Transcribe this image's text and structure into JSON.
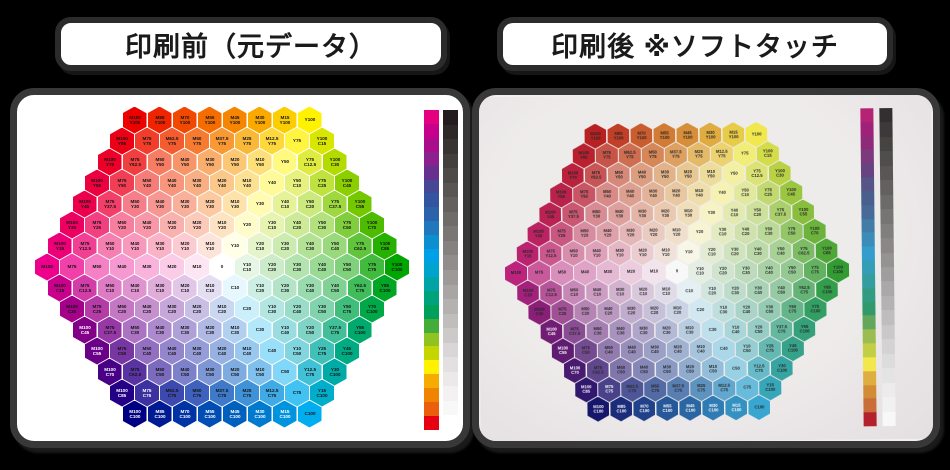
{
  "page": {
    "background": "#000000"
  },
  "panels": {
    "left": {
      "title": "印刷前（元データ）"
    },
    "right": {
      "title": "印刷後 ※ソフトタッチ"
    }
  },
  "inks": {
    "M": "#ec008c",
    "Y": "#fff200",
    "C": "#00aeef"
  },
  "center_label": "0",
  "hex_rows": [
    [
      "M100 Y100",
      "M85 Y100",
      "M70 Y100",
      "M55 Y100",
      "M45 Y100",
      "M30 Y100",
      "M15 Y100",
      "Y100"
    ],
    [
      "M100 Y85",
      "M75 Y75",
      "M62.5 Y75",
      "M50 Y75",
      "M37.5 Y75",
      "M25 Y75",
      "M12.5 Y75",
      "Y75",
      "Y100 C15"
    ],
    [
      "M100 Y70",
      "M75 Y62.5",
      "M50 Y50",
      "M40 Y50",
      "M30 Y50",
      "M20 Y50",
      "M10 Y50",
      "Y50",
      "Y75 C12.5",
      "Y100 C30"
    ],
    [
      "M100 Y55",
      "M75 Y50",
      "M50 Y40",
      "M40 Y40",
      "M30 Y40",
      "M20 Y40",
      "M10 Y40",
      "Y40",
      "Y50 C10",
      "Y75 C25",
      "Y100 C45"
    ],
    [
      "M100 Y45",
      "M75 Y37.5",
      "M50 Y30",
      "M40 Y30",
      "M30 Y30",
      "M20 Y30",
      "M10 Y30",
      "Y30",
      "Y40 C10",
      "Y50 C20",
      "Y75 C37.5",
      "Y100 C55"
    ],
    [
      "M100 Y30",
      "M75 Y25",
      "M50 Y20",
      "M40 Y20",
      "M30 Y20",
      "M20 Y20",
      "M10 Y20",
      "Y20",
      "Y30 C10",
      "Y40 C20",
      "Y50 C30",
      "Y75 C50",
      "Y100 C70"
    ],
    [
      "M100 Y15",
      "M75 Y12.5",
      "M50 Y10",
      "M40 Y10",
      "M30 Y10",
      "M20 Y10",
      "M10 Y10",
      "Y10",
      "Y20 C10",
      "Y30 C20",
      "Y40 C30",
      "Y50 C40",
      "Y75 C62.5",
      "Y100 C85"
    ],
    [
      "M100",
      "M75",
      "M50",
      "M40",
      "M30",
      "M20",
      "M10",
      "0",
      "Y10 C10",
      "Y20 C20",
      "Y30 C30",
      "Y40 C40",
      "Y50 C50",
      "Y75 C75",
      "Y100 C100"
    ],
    [
      "M100 C15",
      "M75 C12.5",
      "M50 C10",
      "M40 C10",
      "M30 C10",
      "M20 C10",
      "M10 C10",
      "C10",
      "Y10 C20",
      "Y20 C30",
      "Y30 C40",
      "Y40 C50",
      "Y62.5 C75",
      "Y85 C100"
    ],
    [
      "M100 C30",
      "M75 C25",
      "M50 C20",
      "M40 C20",
      "M30 C20",
      "M20 C20",
      "M10 C20",
      "C20",
      "Y10 C30",
      "Y20 C40",
      "Y30 C50",
      "Y50 C75",
      "Y70 C100"
    ],
    [
      "M100 C45",
      "M75 C37.5",
      "M50 C30",
      "M40 C30",
      "M30 C30",
      "M20 C30",
      "M10 C30",
      "C30",
      "Y10 C40",
      "Y20 C50",
      "Y37.5 C75",
      "Y55 C100"
    ],
    [
      "M100 C55",
      "M75 C50",
      "M50 C40",
      "M40 C40",
      "M30 C40",
      "M20 C40",
      "M10 C40",
      "C40",
      "Y10 C50",
      "Y25 C75",
      "Y45 C100"
    ],
    [
      "M100 C70",
      "M75 C62.5",
      "M50 C50",
      "M40 C50",
      "M30 C50",
      "M20 C50",
      "M10 C50",
      "C50",
      "Y12.5 C75",
      "Y30 C100"
    ],
    [
      "M100 C85",
      "M75 C75",
      "M62.5 C75",
      "M50 C75",
      "M37.5 C75",
      "M25 C75",
      "M12.5 C75",
      "C75",
      "Y15 C100"
    ],
    [
      "M100 C100",
      "M85 C100",
      "M70 C100",
      "M55 C100",
      "M45 C100",
      "M30 C100",
      "M15 C100",
      "C100"
    ]
  ],
  "spectrum_bar_stops": [
    "#e4007f",
    "#c6008a",
    "#a90d8b",
    "#8b218c",
    "#67308f",
    "#474795",
    "#33549e",
    "#2b62a9",
    "#1f78bb",
    "#0d8ed1",
    "#00a0e9",
    "#00a3cb",
    "#00a4a5",
    "#00a27b",
    "#00a05b",
    "#44ad3a",
    "#8fc31f",
    "#c3d600",
    "#fff100",
    "#f6ab00",
    "#f08300",
    "#eb5e0c",
    "#e60012"
  ],
  "gray_bar_stops": [
    "#241c1e",
    "#3d3838",
    "#565151",
    "#706b6b",
    "#8a8585",
    "#a5a1a1",
    "#c0bdbd",
    "#dcdada",
    "#f1efef",
    "#ffffff"
  ]
}
